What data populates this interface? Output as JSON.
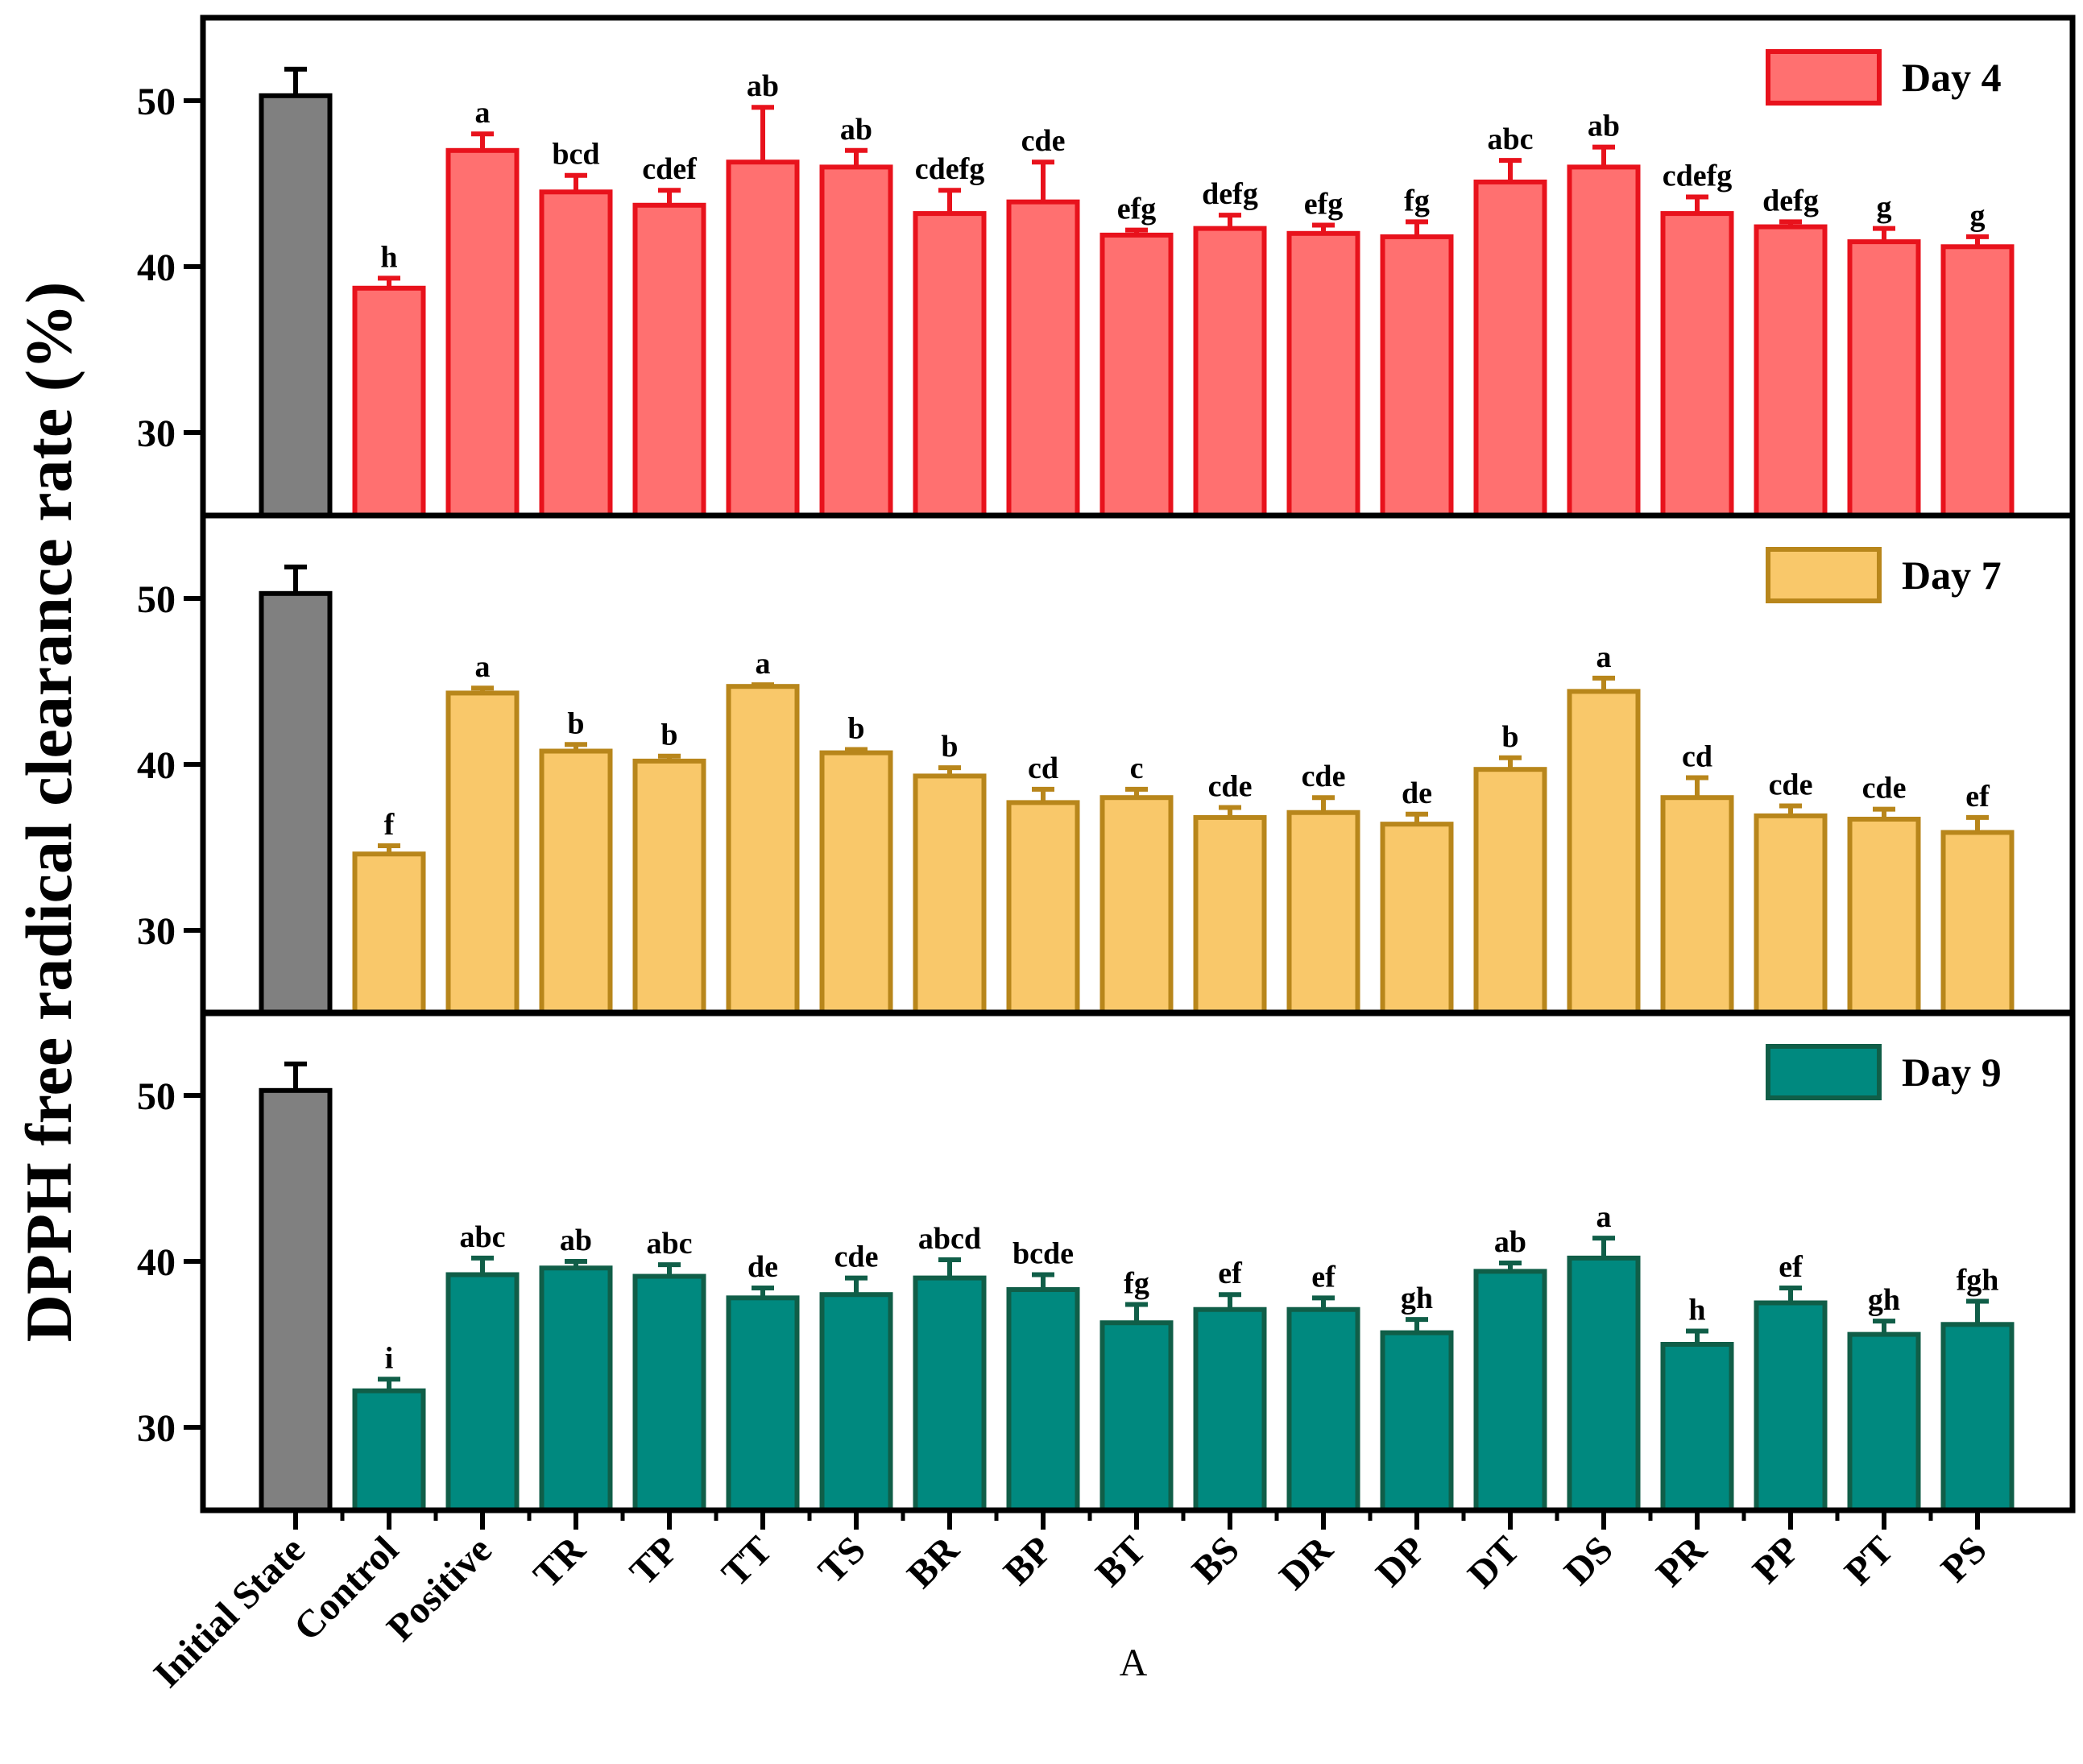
{
  "chart_data": {
    "type": "bar",
    "ylabel": "DPPH free radical clearance rate (%)",
    "xlabel": "A",
    "categories": [
      "Initial State",
      "Control",
      "Positive",
      "TR",
      "TP",
      "TT",
      "TS",
      "BR",
      "BP",
      "BT",
      "BS",
      "DR",
      "DP",
      "DT",
      "DS",
      "PR",
      "PP",
      "PT",
      "PS"
    ],
    "ylim": [
      25,
      55
    ],
    "yticks": [
      30,
      40,
      50
    ],
    "legend_position": "top-right",
    "initial_state_color": "#808080",
    "panels": [
      {
        "legend": "Day 4",
        "fill": "#FF7070",
        "stroke": "#E8121C",
        "values": [
          50.3,
          38.7,
          47.0,
          44.5,
          43.7,
          46.3,
          46.0,
          43.2,
          43.9,
          41.9,
          42.3,
          42.0,
          41.8,
          45.1,
          46.0,
          43.2,
          42.4,
          41.5,
          41.2
        ],
        "errors": [
          1.6,
          0.6,
          1.0,
          1.0,
          0.9,
          3.3,
          1.0,
          1.4,
          2.4,
          0.3,
          0.8,
          0.5,
          0.9,
          1.3,
          1.2,
          1.0,
          0.3,
          0.8,
          0.6
        ],
        "letters": [
          "",
          "h",
          "a",
          "bcd",
          "cdef",
          "ab",
          "ab",
          "cdefg",
          "cde",
          "efg",
          "defg",
          "efg",
          "fg",
          "abc",
          "ab",
          "cdefg",
          "defg",
          "g",
          "g"
        ]
      },
      {
        "legend": "Day 7",
        "fill": "#F9C86A",
        "stroke": "#B8861B",
        "values": [
          50.3,
          34.6,
          44.3,
          40.8,
          40.2,
          44.7,
          40.7,
          39.3,
          37.7,
          38.0,
          36.8,
          37.1,
          36.4,
          39.7,
          44.4,
          38.0,
          36.9,
          36.7,
          35.9
        ],
        "errors": [
          1.6,
          0.5,
          0.3,
          0.4,
          0.3,
          0.1,
          0.2,
          0.5,
          0.8,
          0.5,
          0.6,
          0.9,
          0.6,
          0.7,
          0.8,
          1.2,
          0.6,
          0.6,
          0.9
        ],
        "letters": [
          "",
          "f",
          "a",
          "b",
          "b",
          "a",
          "b",
          "b",
          "cd",
          "c",
          "cde",
          "cde",
          "de",
          "b",
          "a",
          "cd",
          "cde",
          "cde",
          "ef"
        ]
      },
      {
        "legend": "Day 9",
        "fill": "#00897F",
        "stroke": "#105E48",
        "values": [
          50.3,
          32.2,
          39.2,
          39.6,
          39.1,
          37.8,
          38.0,
          39.0,
          38.3,
          36.3,
          37.1,
          37.1,
          35.7,
          39.4,
          40.2,
          35.0,
          37.5,
          35.6,
          36.2
        ],
        "errors": [
          1.6,
          0.7,
          1.0,
          0.4,
          0.7,
          0.6,
          1.0,
          1.1,
          0.9,
          1.1,
          0.9,
          0.7,
          0.8,
          0.5,
          1.2,
          0.8,
          0.9,
          0.8,
          1.4
        ],
        "letters": [
          "",
          "i",
          "abc",
          "ab",
          "abc",
          "de",
          "cde",
          "abcd",
          "bcde",
          "fg",
          "ef",
          "ef",
          "gh",
          "ab",
          "a",
          "h",
          "ef",
          "gh",
          "fgh"
        ]
      }
    ]
  }
}
